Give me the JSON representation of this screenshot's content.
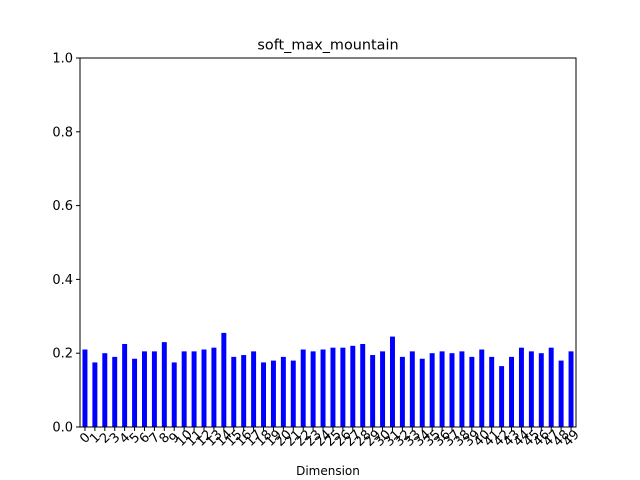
{
  "chart_data": {
    "type": "bar",
    "title": "soft_max_mountain",
    "xlabel": "Dimension",
    "ylabel": "",
    "ylim": [
      0,
      1
    ],
    "yticks": [
      "0.0",
      "0.2",
      "0.4",
      "0.6",
      "0.8",
      "1.0"
    ],
    "grid": false,
    "bar_color": "#0000ff",
    "categories": [
      "0",
      "1",
      "2",
      "3",
      "4",
      "5",
      "6",
      "7",
      "8",
      "9",
      "10",
      "11",
      "12",
      "13",
      "14",
      "15",
      "16",
      "17",
      "18",
      "19",
      "20",
      "21",
      "22",
      "23",
      "24",
      "25",
      "26",
      "27",
      "28",
      "29",
      "30",
      "31",
      "32",
      "33",
      "34",
      "35",
      "36",
      "37",
      "38",
      "39",
      "40",
      "41",
      "42",
      "43",
      "44",
      "45",
      "46",
      "47",
      "48",
      "49"
    ],
    "values": [
      0.21,
      0.175,
      0.2,
      0.19,
      0.225,
      0.185,
      0.205,
      0.205,
      0.23,
      0.175,
      0.205,
      0.205,
      0.21,
      0.215,
      0.255,
      0.19,
      0.195,
      0.205,
      0.175,
      0.18,
      0.19,
      0.18,
      0.21,
      0.205,
      0.21,
      0.215,
      0.215,
      0.22,
      0.225,
      0.195,
      0.205,
      0.245,
      0.19,
      0.205,
      0.185,
      0.2,
      0.205,
      0.2,
      0.205,
      0.19,
      0.21,
      0.19,
      0.165,
      0.19,
      0.215,
      0.205,
      0.2,
      0.215,
      0.18,
      0.205
    ]
  }
}
